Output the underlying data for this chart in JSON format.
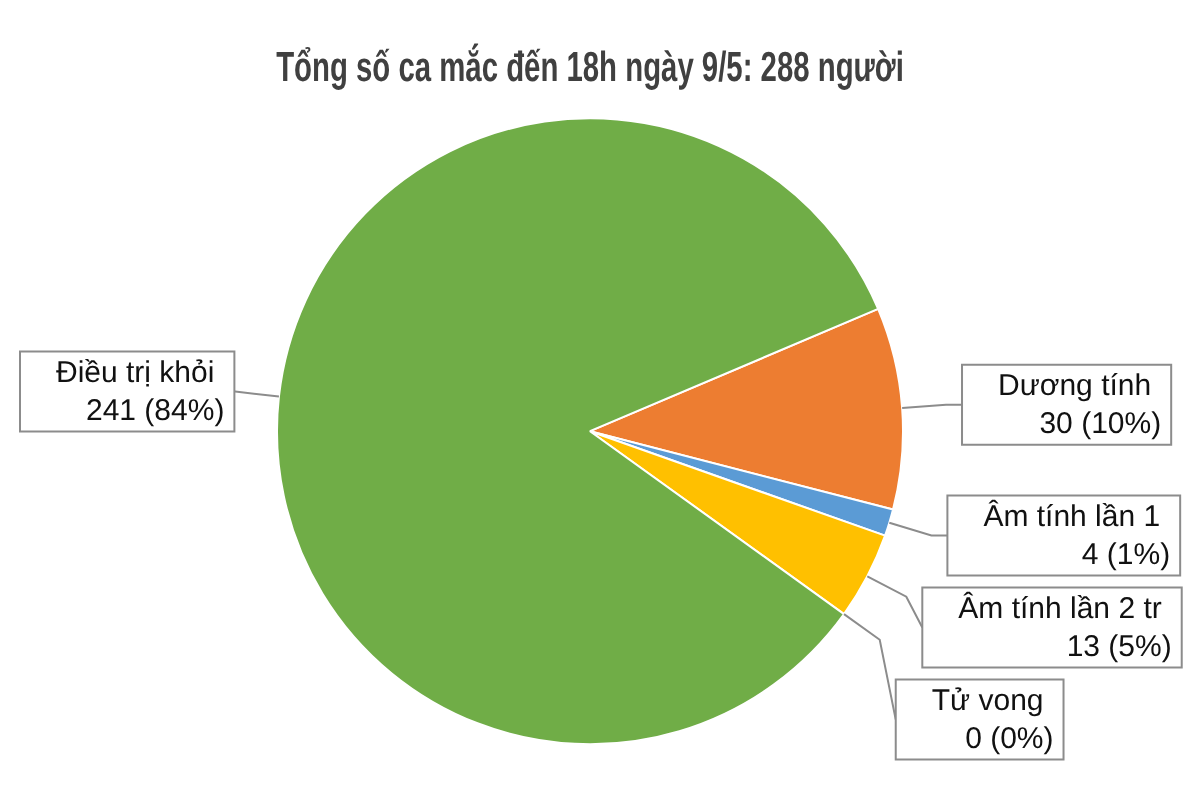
{
  "chart_data": {
    "type": "pie",
    "title": "Tổng số ca mắc đến 18h ngày 9/5: 288 người",
    "categories": [
      "Dương tính",
      "Âm tính lần 1",
      "Âm tính lần 2 tr",
      "Tử vong",
      "Điều trị khỏi"
    ],
    "values": [
      30,
      4,
      13,
      0,
      241
    ],
    "value_labels": [
      "30 (10%)",
      "4 (1%)",
      "13 (5%)",
      "0 (0%)",
      "241 (84%)"
    ],
    "colors": [
      "#ed7d31",
      "#5b9bd5",
      "#ffc000",
      "#7f7f7f",
      "#70ad47"
    ],
    "legend": false
  }
}
